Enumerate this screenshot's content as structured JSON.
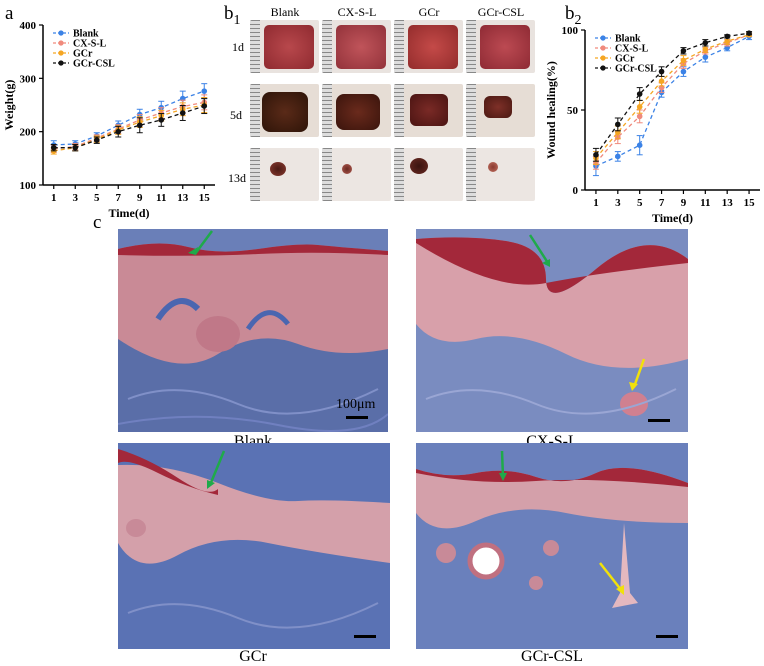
{
  "panel_labels": {
    "a": "a",
    "b1": "b",
    "b1_sub": "1",
    "b2": "b",
    "b2_sub": "2",
    "c": "c"
  },
  "chart_data": [
    {
      "type": "line",
      "xlabel": "Time(d)",
      "ylabel": "Weight(g)",
      "x": [
        1,
        3,
        5,
        7,
        9,
        11,
        13,
        15
      ],
      "ylim": [
        100,
        400
      ],
      "yticks": [
        100,
        200,
        300,
        400
      ],
      "legend_position": "top-left",
      "series": [
        {
          "name": "Blank",
          "color": "#3b82e6",
          "values": [
            175,
            177,
            192,
            212,
            232,
            245,
            262,
            276
          ],
          "err": [
            8,
            6,
            6,
            8,
            10,
            12,
            14,
            14
          ]
        },
        {
          "name": "CX-S-L",
          "color": "#f08a7c",
          "values": [
            168,
            172,
            188,
            205,
            222,
            235,
            247,
            255
          ],
          "err": [
            7,
            6,
            6,
            8,
            10,
            10,
            12,
            14
          ]
        },
        {
          "name": "GCr",
          "color": "#f5a623",
          "values": [
            164,
            170,
            186,
            203,
            218,
            230,
            242,
            250
          ],
          "err": [
            6,
            6,
            6,
            8,
            10,
            10,
            12,
            14
          ]
        },
        {
          "name": "GCr-CSL",
          "color": "#111111",
          "values": [
            170,
            170,
            184,
            200,
            212,
            222,
            235,
            248
          ],
          "err": [
            6,
            6,
            6,
            10,
            14,
            12,
            14,
            14
          ]
        }
      ]
    },
    {
      "type": "line",
      "xlabel": "Time(d)",
      "ylabel": "Wound healing(%)",
      "x": [
        1,
        3,
        5,
        7,
        9,
        11,
        13,
        15
      ],
      "ylim": [
        0,
        100
      ],
      "yticks": [
        0,
        50,
        100
      ],
      "legend_position": "top-left",
      "series": [
        {
          "name": "Blank",
          "color": "#3b82e6",
          "values": [
            15,
            21,
            28,
            61,
            74,
            83,
            89,
            96
          ],
          "err": [
            6,
            3,
            6,
            3,
            3,
            3,
            2,
            2
          ]
        },
        {
          "name": "CX-S-L",
          "color": "#f08a7c",
          "values": [
            17,
            33,
            46,
            64,
            79,
            87,
            92,
            97
          ],
          "err": [
            4,
            4,
            4,
            3,
            3,
            2,
            2,
            1
          ]
        },
        {
          "name": "GCr",
          "color": "#f5a623",
          "values": [
            20,
            36,
            52,
            68,
            81,
            88,
            93,
            97
          ],
          "err": [
            4,
            4,
            4,
            3,
            3,
            2,
            2,
            1
          ]
        },
        {
          "name": "GCr-CSL",
          "color": "#111111",
          "values": [
            22,
            41,
            60,
            74,
            87,
            92,
            96,
            98
          ],
          "err": [
            4,
            4,
            4,
            3,
            2,
            2,
            1,
            1
          ]
        }
      ]
    }
  ],
  "wound_photos": {
    "columns": [
      "Blank",
      "CX-S-L",
      "GCr",
      "GCr-CSL"
    ],
    "rows": [
      "1d",
      "5d",
      "13d"
    ]
  },
  "histology": {
    "captions": [
      "Blank",
      "CX-S-L",
      "GCr",
      "GCr-CSL"
    ],
    "scale_bar": "100μm"
  }
}
